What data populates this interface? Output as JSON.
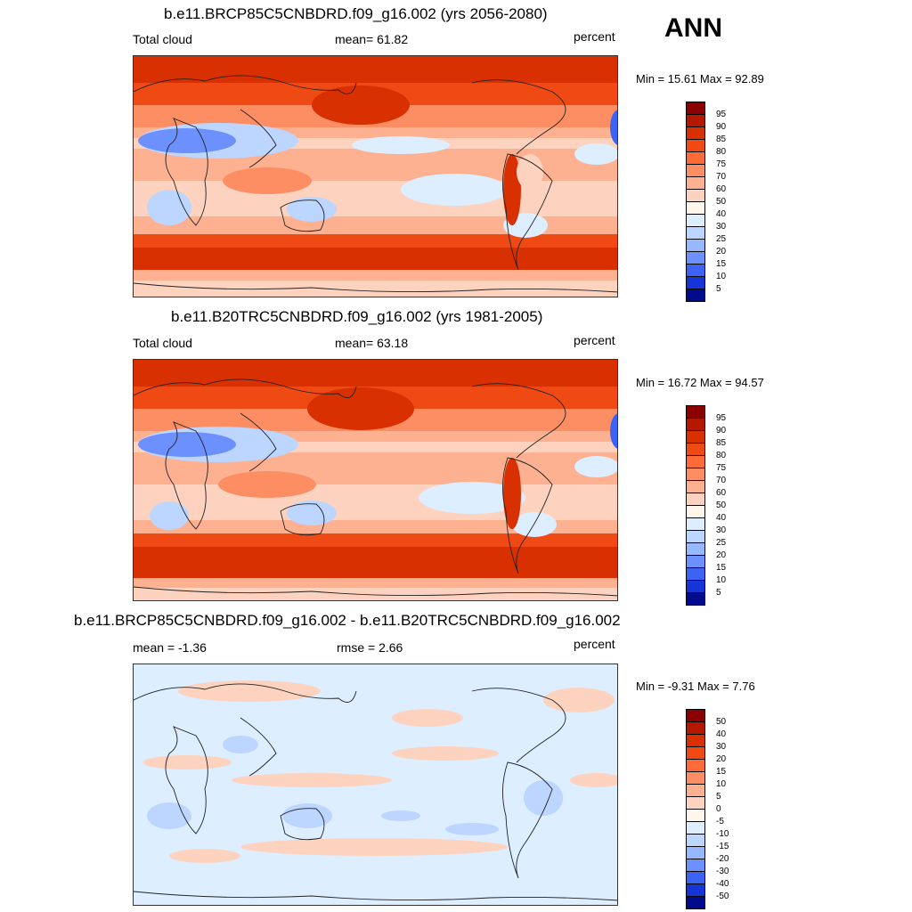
{
  "season": "ANN",
  "panels": [
    {
      "title": "b.e11.BRCP85C5CNBDRD.f09_g16.002 (yrs 2056-2080)",
      "left_label": "Total cloud",
      "center_label": "mean=  61.82",
      "units": "percent",
      "minmax": "Min =  15.61 Max =  92.89",
      "levels": [
        "95",
        "90",
        "85",
        "80",
        "75",
        "70",
        "60",
        "50",
        "40",
        "30",
        "25",
        "20",
        "15",
        "10",
        "5"
      ],
      "colors": [
        "#8b0000",
        "#b51800",
        "#d83000",
        "#ef4a14",
        "#fc6b38",
        "#fd8d62",
        "#fdb191",
        "#fdd3bf",
        "#fff7ec",
        "#dceeff",
        "#bcd6ff",
        "#96b8ff",
        "#6c91ff",
        "#3d63f5",
        "#1535d6",
        "#000c8c"
      ]
    },
    {
      "title": "b.e11.B20TRC5CNBDRD.f09_g16.002 (yrs 1981-2005)",
      "left_label": "Total cloud",
      "center_label": "mean=  63.18",
      "units": "percent",
      "minmax": "Min =  16.72 Max =  94.57",
      "levels": [
        "95",
        "90",
        "85",
        "80",
        "75",
        "70",
        "60",
        "50",
        "40",
        "30",
        "25",
        "20",
        "15",
        "10",
        "5"
      ],
      "colors": [
        "#8b0000",
        "#b51800",
        "#d83000",
        "#ef4a14",
        "#fc6b38",
        "#fd8d62",
        "#fdb191",
        "#fdd3bf",
        "#fff7ec",
        "#dceeff",
        "#bcd6ff",
        "#96b8ff",
        "#6c91ff",
        "#3d63f5",
        "#1535d6",
        "#000c8c"
      ]
    },
    {
      "title": "b.e11.BRCP85C5CNBDRD.f09_g16.002 - b.e11.B20TRC5CNBDRD.f09_g16.002",
      "left_label": "mean =  -1.36",
      "center_label": "rmse =   2.66",
      "units": "percent",
      "minmax": "Min =  -9.31 Max =   7.76",
      "levels": [
        "50",
        "40",
        "30",
        "20",
        "15",
        "10",
        "5",
        "0",
        "-5",
        "-10",
        "-15",
        "-20",
        "-30",
        "-40",
        "-50"
      ],
      "colors": [
        "#8b0000",
        "#b51800",
        "#d83000",
        "#ef4a14",
        "#fc6b38",
        "#fd8d62",
        "#fdb191",
        "#fdd3bf",
        "#fff7ec",
        "#dceeff",
        "#bcd6ff",
        "#96b8ff",
        "#6c91ff",
        "#3d63f5",
        "#1535d6",
        "#000c8c"
      ]
    }
  ]
}
